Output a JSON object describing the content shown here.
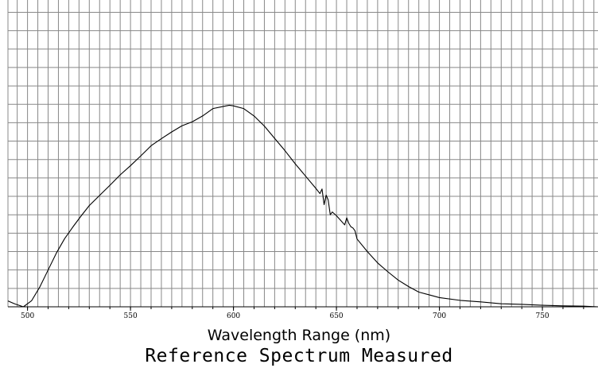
{
  "chart_data": {
    "type": "line",
    "title": "Reference Spectrum Measured",
    "xlabel": "Wavelength Range (nm)",
    "ylabel": "",
    "xlim": [
      490.5,
      777
    ],
    "ylim": [
      0,
      100
    ],
    "grid": true,
    "x_ticks": [
      500,
      550,
      600,
      650,
      700,
      750
    ],
    "x_tick_labels": [
      "500",
      "550",
      "600",
      "650",
      "700",
      "750"
    ],
    "colors": {
      "line": "#000000",
      "grid": "#888888",
      "axis": "#000000"
    },
    "series": [
      {
        "x": [
          490.5,
          494,
          498,
          502,
          506,
          510,
          514,
          518,
          522,
          526,
          530,
          535,
          540,
          545,
          550,
          555,
          560,
          565,
          570,
          575,
          580,
          585,
          590,
          595,
          598,
          600,
          605,
          610,
          615,
          620,
          625,
          630,
          635,
          640,
          642,
          643,
          644,
          645,
          646,
          647,
          648,
          650,
          652,
          654,
          655,
          656,
          657,
          658,
          659,
          660,
          665,
          670,
          675,
          680,
          685,
          690,
          695,
          700,
          710,
          720,
          730,
          740,
          750,
          760,
          770,
          777
        ],
        "y": [
          1.9,
          0.9,
          0.0,
          2.0,
          6.5,
          12.0,
          17.5,
          22.2,
          26.0,
          29.6,
          33.0,
          36.3,
          39.6,
          43.0,
          46.0,
          49.2,
          52.5,
          54.8,
          57.0,
          59.0,
          60.3,
          62.2,
          64.6,
          65.3,
          65.7,
          65.5,
          64.6,
          62.2,
          58.9,
          54.9,
          50.9,
          46.6,
          42.6,
          38.6,
          36.9,
          38.4,
          33.3,
          36.4,
          34.8,
          30.0,
          30.9,
          29.7,
          28.2,
          26.7,
          29.0,
          27.2,
          26.1,
          25.7,
          24.8,
          22.1,
          18.0,
          14.3,
          11.4,
          8.7,
          6.6,
          4.8,
          3.9,
          3.0,
          2.1,
          1.6,
          1.0,
          0.8,
          0.5,
          0.3,
          0.2,
          0.0
        ]
      }
    ]
  }
}
